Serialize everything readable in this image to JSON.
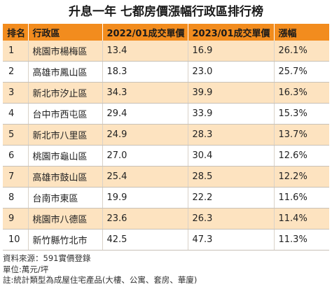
{
  "title": "升息一年 七都房價漲幅行政區排行榜",
  "table": {
    "headers": {
      "rank": "排名",
      "district": "行政區",
      "price_2022": "2022/01成交單價",
      "price_2023": "2023/01成交單價",
      "change": "漲幅"
    },
    "rows": [
      {
        "rank": "1",
        "district": "桃園市楊梅區",
        "price_2022": "13.4",
        "price_2023": "16.9",
        "change": "26.1%"
      },
      {
        "rank": "2",
        "district": "高雄市鳳山區",
        "price_2022": "18.3",
        "price_2023": "23.0",
        "change": "25.7%"
      },
      {
        "rank": "3",
        "district": "新北市汐止區",
        "price_2022": "34.3",
        "price_2023": "39.9",
        "change": "16.3%"
      },
      {
        "rank": "4",
        "district": "台中市西屯區",
        "price_2022": "29.4",
        "price_2023": "33.9",
        "change": "15.3%"
      },
      {
        "rank": "5",
        "district": "新北市八里區",
        "price_2022": "24.9",
        "price_2023": "28.3",
        "change": "13.7%"
      },
      {
        "rank": "6",
        "district": "桃園市龜山區",
        "price_2022": "27.0",
        "price_2023": "30.4",
        "change": "12.6%"
      },
      {
        "rank": "7",
        "district": "高雄市鼓山區",
        "price_2022": "25.4",
        "price_2023": "28.5",
        "change": "12.2%"
      },
      {
        "rank": "8",
        "district": "台南市東區",
        "price_2022": "19.9",
        "price_2023": "22.2",
        "change": "11.6%"
      },
      {
        "rank": "9",
        "district": "桃園市八德區",
        "price_2022": "23.6",
        "price_2023": "26.3",
        "change": "11.4%"
      },
      {
        "rank": "10",
        "district": "新竹縣竹北市",
        "price_2022": "42.5",
        "price_2023": "47.3",
        "change": "11.3%"
      }
    ]
  },
  "notes": {
    "source": "資料來源：591實價登錄",
    "unit": "單位:萬元/坪",
    "remark": "註:統計類型為成屋住宅產品(大樓、公寓、套房、華廈)"
  },
  "colors": {
    "header_bg": "#f28c1e",
    "odd_row_bg": "#fde3c0",
    "even_row_bg": "#ffffff"
  }
}
